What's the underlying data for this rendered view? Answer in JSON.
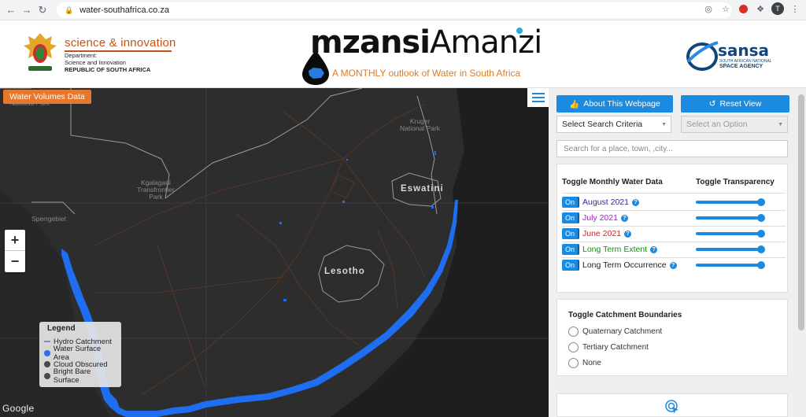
{
  "browser": {
    "url": "water-southafrica.co.za",
    "profile_initial": "T"
  },
  "header": {
    "dept_brand": "science & innovation",
    "dept_line1": "Department:",
    "dept_line2": "Science and Innovation",
    "dept_line3": "REPUBLIC OF SOUTH AFRICA",
    "title_bold": "mzansi",
    "title_light": "Amanzi",
    "tagline": "A MONTHLY outlook of Water in South Africa",
    "sansa_name": "sansa",
    "sansa_sub1": "SOUTH AFRICAN NATIONAL",
    "sansa_sub2": "SPACE AGENCY"
  },
  "map": {
    "volumes_button": "Water Volumes Data",
    "zoom_in": "+",
    "zoom_out": "−",
    "attribution": "Google",
    "labels": {
      "eswatini": "Eswatini",
      "lesotho": "Lesotho",
      "kruger_1": "Kruger",
      "kruger_2": "National Park",
      "kgalagadi_1": "Kgalagadi",
      "kgalagadi_2": "Transfrontier",
      "kgalagadi_3": "Park",
      "sperrgebiet": "Sperrgebiet",
      "national_park": "National Park"
    },
    "legend": {
      "title": "Legend",
      "items": [
        {
          "label": "Hydro Catchment",
          "color": "#7a8cc4"
        },
        {
          "label": "Water Surface Area",
          "color": "#2f6fe0"
        },
        {
          "label": "Cloud Obscured",
          "color": "#4a4a4a"
        },
        {
          "label": "Bright Bare Surface",
          "color": "#4a4a4a"
        }
      ]
    }
  },
  "panel": {
    "about_button": "About This Webpage",
    "reset_button": "Reset View",
    "criteria_select": "Select Search Criteria",
    "option_select": "Select an Option",
    "search_placeholder": "Search for a place, town, ,city...",
    "monthly_header": "Toggle Monthly Water Data",
    "transparency_header": "Toggle Transparency",
    "on_label": "On",
    "rows": [
      {
        "label": "August 2021",
        "color": "#2a2ab8",
        "transparency": 1.0
      },
      {
        "label": "July 2021",
        "color": "#a020c8",
        "transparency": 1.0
      },
      {
        "label": "June 2021",
        "color": "#d42020",
        "transparency": 1.0
      },
      {
        "label": "Long Term Extent",
        "color": "#1a8a1a",
        "transparency": 1.0
      },
      {
        "label": "Long Term Occurrence",
        "color": "#222222",
        "transparency": 1.0
      }
    ],
    "catchment_title": "Toggle Catchment Boundaries",
    "catchment_options": [
      "Quaternary Catchment",
      "Tertiary Catchment",
      "None"
    ]
  },
  "colors": {
    "accent": "#1a8be0",
    "orange": "#e5772e",
    "water": "#1f6df0"
  }
}
